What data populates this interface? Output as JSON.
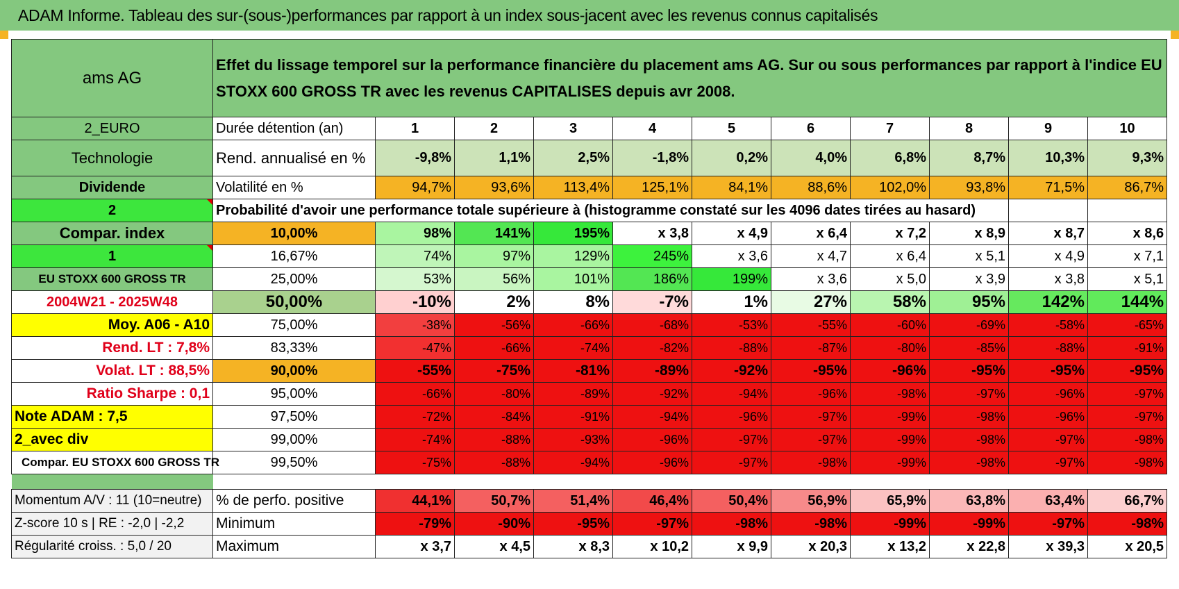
{
  "title": "ADAM Informe. Tableau des sur-(sous-)performances par rapport à un index sous-jacent avec les revenus connus capitalisés",
  "header": {
    "company": "ams AG",
    "description": "Effet du lissage temporel sur la performance financière du placement ams AG. Sur ou sous performances par rapport à l'indice EU STOXX 600 GROSS TR avec les revenus CAPITALISES depuis avr 2008."
  },
  "years": [
    "1",
    "2",
    "3",
    "4",
    "5",
    "6",
    "7",
    "8",
    "9",
    "10"
  ],
  "rows_top": [
    {
      "left": "2_EURO",
      "label": "Durée détention (an)"
    },
    {
      "left": "Technologie",
      "label": "Rend. annualisé en %",
      "values": [
        "-9,8%",
        "1,1%",
        "2,5%",
        "-1,8%",
        "0,2%",
        "4,0%",
        "6,8%",
        "8,7%",
        "10,3%",
        "9,3%"
      ]
    },
    {
      "left": "Dividende",
      "label": "Volatilité en %",
      "values": [
        "94,7%",
        "93,6%",
        "113,4%",
        "125,1%",
        "84,1%",
        "88,6%",
        "102,0%",
        "93,8%",
        "71,5%",
        "86,7%"
      ]
    },
    {
      "left": "2",
      "label": "Probabilité d'avoir une performance totale supérieure à (histogramme constaté sur les 4096 dates tirées au hasard)"
    }
  ],
  "rows_prob": [
    {
      "left": "Compar. index",
      "pct": "10,00%",
      "values": [
        "98%",
        "141%",
        "195%",
        "x 3,8",
        "x 4,9",
        "x 6,4",
        "x 7,2",
        "x 8,9",
        "x 8,7",
        "x 8,6"
      ]
    },
    {
      "left": "1",
      "pct": "16,67%",
      "values": [
        "74%",
        "97%",
        "129%",
        "245%",
        "x 3,6",
        "x 4,7",
        "x 6,4",
        "x 5,1",
        "x 4,9",
        "x 7,1"
      ]
    },
    {
      "left": "EU STOXX 600 GROSS TR",
      "pct": "25,00%",
      "values": [
        "53%",
        "56%",
        "101%",
        "186%",
        "199%",
        "x 3,6",
        "x 5,0",
        "x 3,9",
        "x 3,8",
        "x 5,1"
      ]
    },
    {
      "left": "2004W21 - 2025W48",
      "pct": "50,00%",
      "values": [
        "-10%",
        "2%",
        "8%",
        "-7%",
        "1%",
        "27%",
        "58%",
        "95%",
        "142%",
        "144%"
      ]
    },
    {
      "left": "Moy. A06 - A10",
      "pct": "75,00%",
      "values": [
        "-38%",
        "-56%",
        "-66%",
        "-68%",
        "-53%",
        "-55%",
        "-60%",
        "-69%",
        "-58%",
        "-65%"
      ]
    },
    {
      "left": "Rend. LT :    7,8%",
      "pct": "83,33%",
      "values": [
        "-47%",
        "-66%",
        "-74%",
        "-82%",
        "-88%",
        "-87%",
        "-80%",
        "-85%",
        "-88%",
        "-91%"
      ]
    },
    {
      "left": "Volat. LT :    88,5%",
      "pct": "90,00%",
      "values": [
        "-55%",
        "-75%",
        "-81%",
        "-89%",
        "-92%",
        "-95%",
        "-96%",
        "-95%",
        "-95%",
        "-95%"
      ]
    },
    {
      "left": "Ratio Sharpe :     0,1",
      "pct": "95,00%",
      "values": [
        "-66%",
        "-80%",
        "-89%",
        "-92%",
        "-94%",
        "-96%",
        "-98%",
        "-97%",
        "-96%",
        "-97%"
      ]
    },
    {
      "left": "Note ADAM : 7,5",
      "pct": "97,50%",
      "values": [
        "-72%",
        "-84%",
        "-91%",
        "-94%",
        "-96%",
        "-97%",
        "-99%",
        "-98%",
        "-96%",
        "-97%"
      ]
    },
    {
      "left": "2_avec div",
      "pct": "99,00%",
      "values": [
        "-74%",
        "-88%",
        "-93%",
        "-96%",
        "-97%",
        "-97%",
        "-99%",
        "-98%",
        "-97%",
        "-98%"
      ]
    },
    {
      "left": "Compar. EU STOXX 600 GROSS TR",
      "pct": "99,50%",
      "values": [
        "-75%",
        "-88%",
        "-94%",
        "-96%",
        "-97%",
        "-98%",
        "-99%",
        "-98%",
        "-97%",
        "-98%"
      ]
    }
  ],
  "rows_bottom": [
    {
      "left": "Momentum A/V : 11 (10=neutre)",
      "label": "% de perfo. positive",
      "values": [
        "44,1%",
        "50,7%",
        "51,4%",
        "46,4%",
        "50,4%",
        "56,9%",
        "65,9%",
        "63,8%",
        "63,4%",
        "66,7%"
      ]
    },
    {
      "left": "Z-score 10 s | RE : -2,0 | -2,2",
      "label": "Minimum",
      "values": [
        "-79%",
        "-90%",
        "-95%",
        "-97%",
        "-98%",
        "-98%",
        "-99%",
        "-99%",
        "-97%",
        "-98%"
      ]
    },
    {
      "left": "Régularité croiss. : 5,0 / 20",
      "label": "Maximum",
      "values": [
        "x 3,7",
        "x 4,5",
        "x 8,3",
        "x 10,2",
        "x 9,9",
        "x 20,3",
        "x 13,2",
        "x 22,8",
        "x 39,3",
        "x 20,5"
      ]
    }
  ]
}
